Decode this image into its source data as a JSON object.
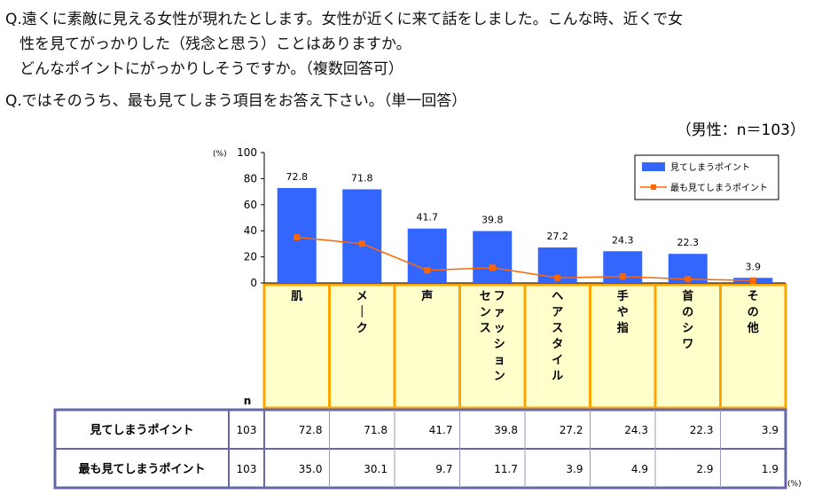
{
  "questions": {
    "q1_line1": "Q.遠くに素敵に見える女性が現れたとします。女性が近くに来て話をしました。こんな時、近くで女",
    "q1_line2": "性を見てがっかりした（残念と思う）ことはありますか。",
    "q1_line3": "どんなポイントにがっかりしそうですか。（複数回答可）",
    "q2": "Q.ではそのうち、最も見てしまう項目をお答え下さい。（単一回答）"
  },
  "sample_note": "（男性：n＝103）",
  "colors": {
    "bar": "#3366ff",
    "line": "#ff6600",
    "category_fill": "#ffffcc",
    "category_border": "#ffa500",
    "table_border": "#6666aa"
  },
  "chart_data": {
    "type": "bar",
    "categories": [
      "肌",
      "メーク",
      "声",
      "ファッションセンス",
      "ヘアスタイル",
      "手や指",
      "首のシワ",
      "その他"
    ],
    "category_lines": [
      [
        "肌"
      ],
      [
        "メーク"
      ],
      [
        "声"
      ],
      [
        "ファッション",
        "センス"
      ],
      [
        "ヘアスタイル"
      ],
      [
        "手や指"
      ],
      [
        "首のシワ"
      ],
      [
        "その他"
      ]
    ],
    "series": [
      {
        "name": "見てしまうポイント",
        "type": "bar",
        "values": [
          72.8,
          71.8,
          41.7,
          39.8,
          27.2,
          24.3,
          22.3,
          3.9
        ]
      },
      {
        "name": "最も見てしまうポイント",
        "type": "line",
        "values": [
          35.0,
          30.1,
          9.7,
          11.7,
          3.9,
          4.9,
          2.9,
          1.9
        ]
      }
    ],
    "data_labels": [
      "72.8",
      "71.8",
      "41.7",
      "39.8",
      "27.2",
      "24.3",
      "22.3",
      "3.9"
    ],
    "ylim": [
      0,
      100
    ],
    "yticks": [
      0,
      20,
      40,
      60,
      80,
      100
    ],
    "y_unit": "(%)",
    "legend_position": "top-right"
  },
  "table": {
    "n_header": "n",
    "unit": "(%)",
    "rows": [
      {
        "label": "見てしまうポイント",
        "n": "103",
        "values": [
          "72.8",
          "71.8",
          "41.7",
          "39.8",
          "27.2",
          "24.3",
          "22.3",
          "3.9"
        ]
      },
      {
        "label": "最も見てしまうポイント",
        "n": "103",
        "values": [
          "35.0",
          "30.1",
          "9.7",
          "11.7",
          "3.9",
          "4.9",
          "2.9",
          "1.9"
        ]
      }
    ]
  }
}
